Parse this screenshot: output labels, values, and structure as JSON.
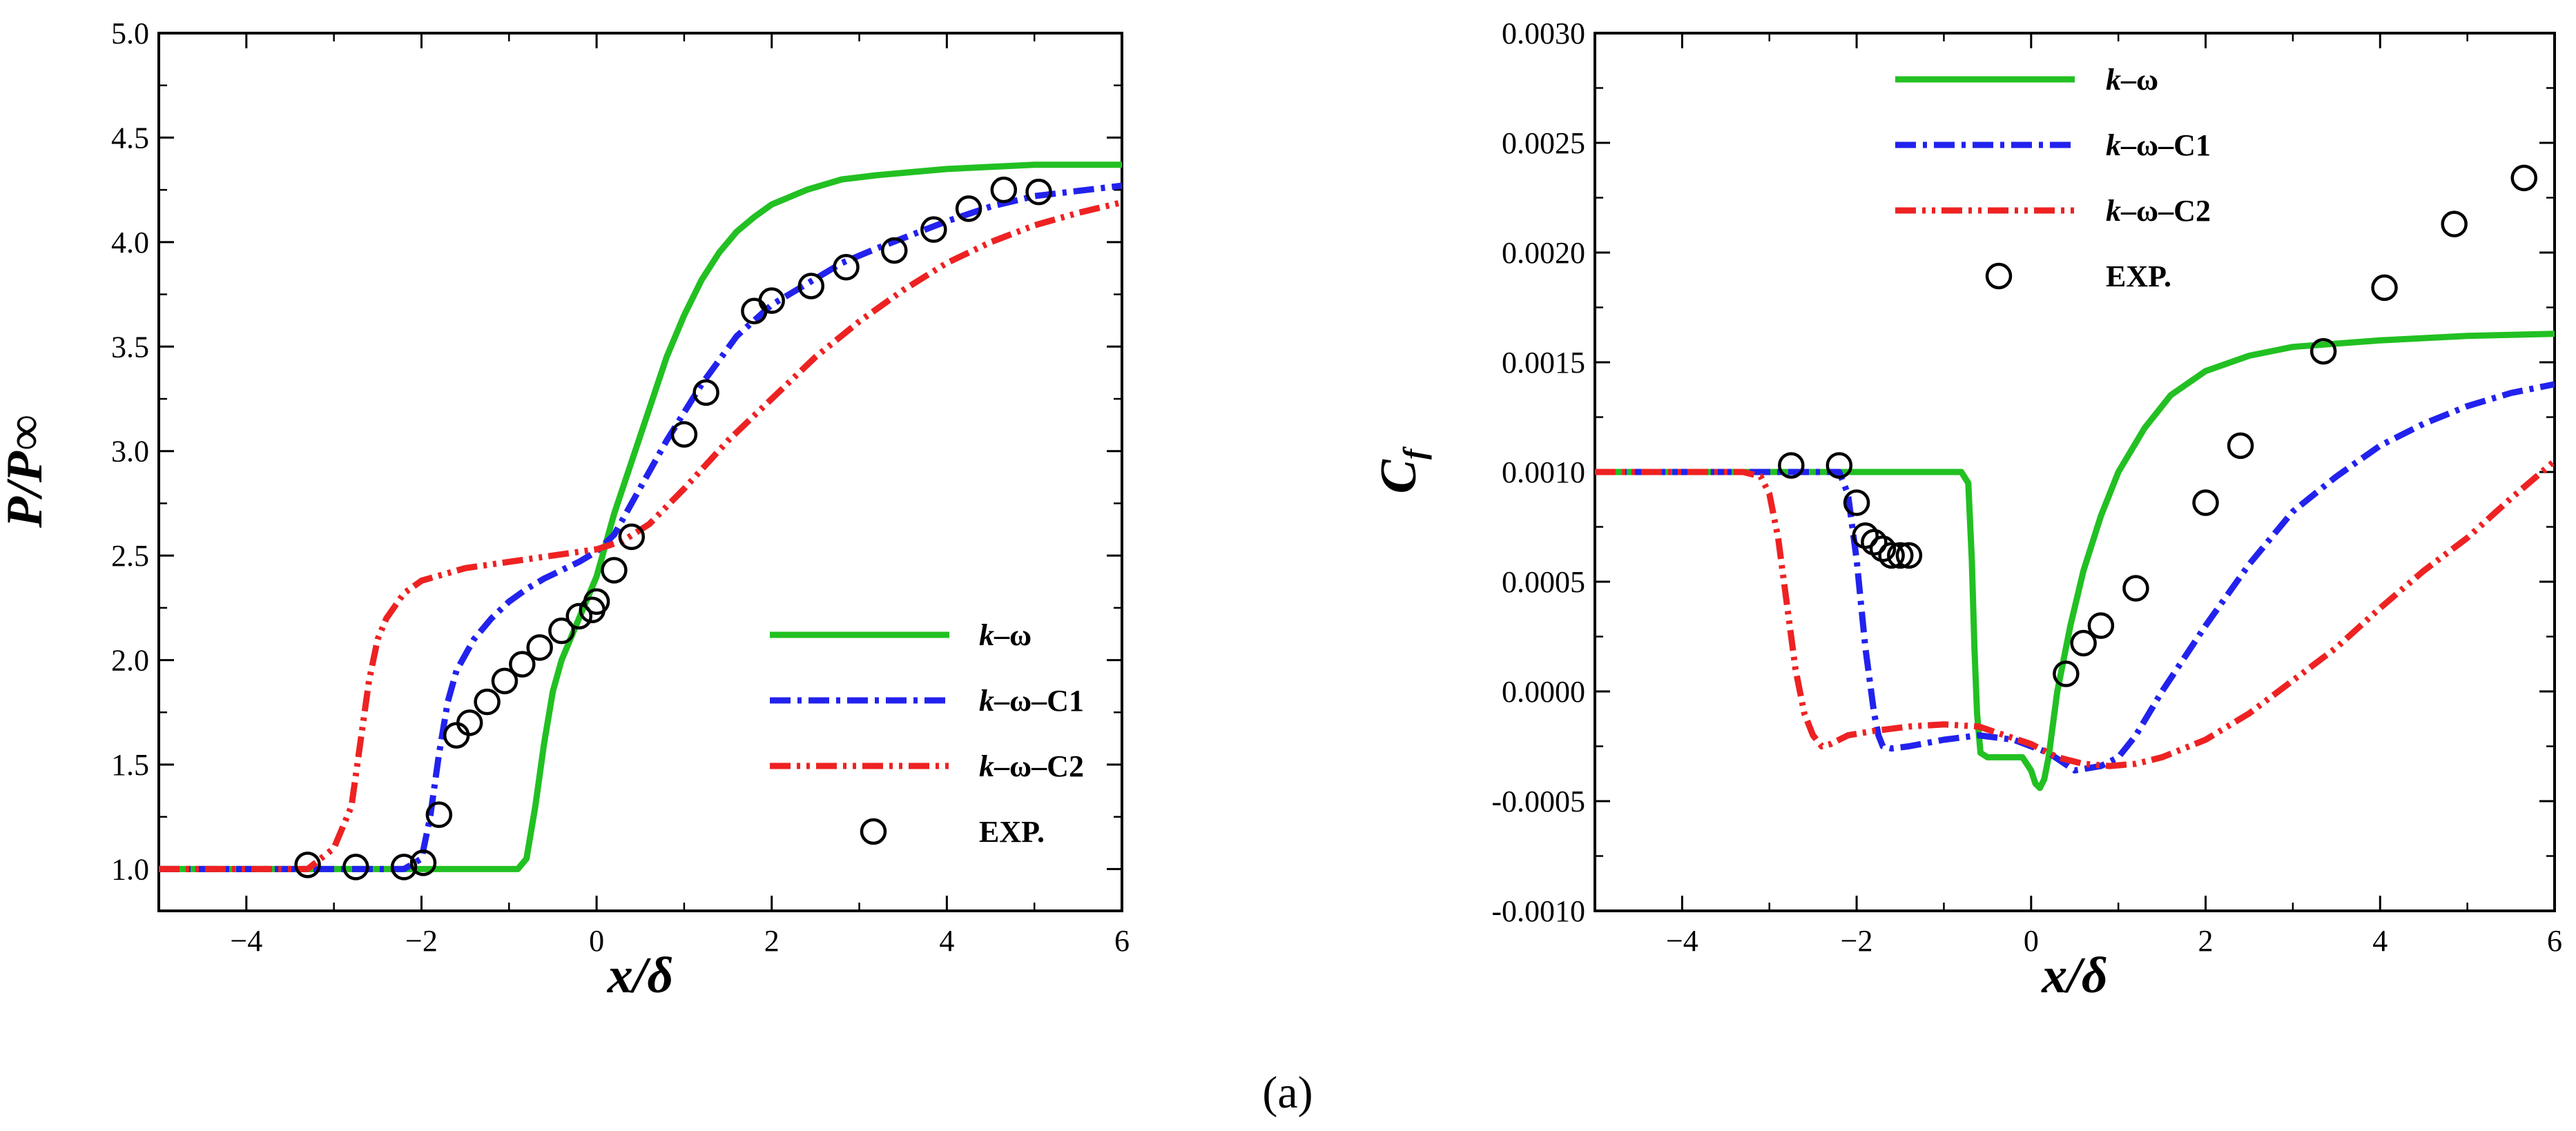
{
  "caption": "(a)",
  "chart_data": [
    {
      "type": "line",
      "xlabel": "x/δ",
      "ylabel": "P/P∞",
      "xlim": [
        -5,
        6
      ],
      "ylim": [
        0.8,
        5.0
      ],
      "xticks": [
        -4,
        -2,
        0,
        2,
        4,
        6
      ],
      "xtick_labels": [
        "−4",
        "−2",
        "0",
        "2",
        "4",
        "6"
      ],
      "yticks": [
        1.0,
        1.5,
        2.0,
        2.5,
        3.0,
        3.5,
        4.0,
        4.5,
        5.0
      ],
      "ytick_labels": [
        "1.0",
        "1.5",
        "2.0",
        "2.5",
        "3.0",
        "3.5",
        "4.0",
        "4.5",
        "5.0"
      ],
      "legend_position": "center-right",
      "series": [
        {
          "name": "k–ω",
          "style": "solid",
          "color": "#22c022",
          "x": [
            -5,
            -0.9,
            -0.8,
            -0.7,
            -0.6,
            -0.5,
            -0.4,
            -0.3,
            -0.2,
            -0.1,
            0.0,
            0.1,
            0.2,
            0.4,
            0.6,
            0.8,
            1.0,
            1.2,
            1.4,
            1.6,
            1.8,
            2.0,
            2.4,
            2.8,
            3.2,
            4.0,
            5.0,
            6.0
          ],
          "y": [
            1.0,
            1.0,
            1.05,
            1.3,
            1.6,
            1.85,
            2.0,
            2.1,
            2.2,
            2.3,
            2.4,
            2.55,
            2.7,
            2.95,
            3.2,
            3.45,
            3.65,
            3.82,
            3.95,
            4.05,
            4.12,
            4.18,
            4.25,
            4.3,
            4.32,
            4.35,
            4.37,
            4.37
          ]
        },
        {
          "name": "k–ω–C1",
          "style": "dashdot",
          "color": "#2222ee",
          "x": [
            -5,
            -2.2,
            -2.0,
            -1.9,
            -1.8,
            -1.7,
            -1.6,
            -1.4,
            -1.2,
            -1.0,
            -0.8,
            -0.6,
            -0.4,
            -0.2,
            0.0,
            0.2,
            0.4,
            0.8,
            1.2,
            1.6,
            2.0,
            2.4,
            2.8,
            3.2,
            4.0,
            4.5,
            5.0,
            6.0
          ],
          "y": [
            1.0,
            1.0,
            1.05,
            1.25,
            1.55,
            1.8,
            1.95,
            2.1,
            2.2,
            2.28,
            2.34,
            2.39,
            2.43,
            2.47,
            2.52,
            2.6,
            2.75,
            3.05,
            3.32,
            3.55,
            3.7,
            3.8,
            3.9,
            3.97,
            4.1,
            4.17,
            4.22,
            4.27
          ]
        },
        {
          "name": "k–ω–C2",
          "style": "dashdotdot",
          "color": "#ee2222",
          "x": [
            -5,
            -3.3,
            -3.0,
            -2.8,
            -2.7,
            -2.6,
            -2.5,
            -2.4,
            -2.2,
            -2.0,
            -1.5,
            -1.0,
            -0.5,
            0.0,
            0.3,
            0.6,
            1.0,
            1.5,
            2.0,
            2.5,
            3.0,
            3.5,
            4.0,
            4.5,
            5.0,
            5.5,
            6.0
          ],
          "y": [
            1.0,
            1.0,
            1.1,
            1.3,
            1.6,
            1.9,
            2.1,
            2.2,
            2.32,
            2.38,
            2.44,
            2.47,
            2.5,
            2.53,
            2.57,
            2.65,
            2.82,
            3.05,
            3.25,
            3.45,
            3.62,
            3.77,
            3.9,
            4.0,
            4.08,
            4.14,
            4.19
          ]
        },
        {
          "name": "EXP.",
          "style": "markers",
          "marker": "open-circle",
          "x": [
            -3.3,
            -2.75,
            -2.2,
            -1.98,
            -1.8,
            -1.6,
            -1.45,
            -1.25,
            -1.05,
            -0.85,
            -0.65,
            -0.4,
            -0.2,
            -0.05,
            0.0,
            0.2,
            0.4,
            1.0,
            1.25,
            1.8,
            2.0,
            2.45,
            2.85,
            3.4,
            3.85,
            4.25,
            4.65,
            5.05
          ],
          "y": [
            1.02,
            1.01,
            1.01,
            1.03,
            1.26,
            1.64,
            1.7,
            1.8,
            1.9,
            1.98,
            2.06,
            2.14,
            2.21,
            2.24,
            2.28,
            2.43,
            2.59,
            3.08,
            3.28,
            3.67,
            3.72,
            3.79,
            3.88,
            3.96,
            4.06,
            4.16,
            4.25,
            4.24
          ]
        }
      ]
    },
    {
      "type": "line",
      "xlabel": "x/δ",
      "ylabel": "Cf",
      "ylabel_main": "C",
      "ylabel_sub": "f",
      "xlim": [
        -5,
        6
      ],
      "ylim": [
        -0.001,
        0.003
      ],
      "xticks": [
        -4,
        -2,
        0,
        2,
        4,
        6
      ],
      "xtick_labels": [
        "−4",
        "−2",
        "0",
        "2",
        "4",
        "6"
      ],
      "yticks": [
        -0.001,
        -0.0005,
        0.0,
        0.0005,
        0.001,
        0.0015,
        0.002,
        0.0025,
        0.003
      ],
      "ytick_labels": [
        "-0.0010",
        "-0.0005",
        "0.0000",
        "0.0005",
        "0.0010",
        "0.0015",
        "0.0020",
        "0.0025",
        "0.0030"
      ],
      "legend_position": "top-center",
      "series": [
        {
          "name": "k–ω",
          "style": "solid",
          "color": "#22c022",
          "x": [
            -5,
            -0.8,
            -0.72,
            -0.68,
            -0.65,
            -0.62,
            -0.58,
            -0.5,
            -0.3,
            -0.1,
            0.0,
            0.05,
            0.1,
            0.15,
            0.2,
            0.3,
            0.45,
            0.6,
            0.8,
            1.0,
            1.3,
            1.6,
            2.0,
            2.5,
            3.0,
            4.0,
            5.0,
            6.0
          ],
          "y": [
            0.001,
            0.001,
            0.00095,
            0.0006,
            0.0002,
            -0.0001,
            -0.00028,
            -0.0003,
            -0.0003,
            -0.0003,
            -0.00036,
            -0.00042,
            -0.00044,
            -0.0004,
            -0.0003,
            0.0,
            0.0003,
            0.00055,
            0.0008,
            0.001,
            0.0012,
            0.00135,
            0.00146,
            0.00153,
            0.00157,
            0.0016,
            0.00162,
            0.00163
          ]
        },
        {
          "name": "k–ω–C1",
          "style": "dashdot",
          "color": "#2222ee",
          "x": [
            -5,
            -2.2,
            -2.1,
            -2.0,
            -1.9,
            -1.8,
            -1.75,
            -1.7,
            -1.6,
            -1.4,
            -1.0,
            -0.6,
            -0.2,
            0.2,
            0.5,
            0.8,
            1.0,
            1.2,
            1.5,
            2.0,
            2.5,
            3.0,
            3.5,
            4.0,
            4.5,
            5.0,
            5.5,
            6.0
          ],
          "y": [
            0.001,
            0.001,
            0.0009,
            0.0006,
            0.0002,
            -0.0001,
            -0.0002,
            -0.00025,
            -0.00026,
            -0.00025,
            -0.00022,
            -0.0002,
            -0.00022,
            -0.00028,
            -0.00036,
            -0.00034,
            -0.0003,
            -0.0002,
            0.0,
            0.0003,
            0.00058,
            0.00082,
            0.00098,
            0.00112,
            0.00122,
            0.0013,
            0.00136,
            0.0014
          ]
        },
        {
          "name": "k–ω–C2",
          "style": "dashdotdot",
          "color": "#ee2222",
          "x": [
            -5,
            -3.3,
            -3.1,
            -3.0,
            -2.9,
            -2.8,
            -2.7,
            -2.6,
            -2.5,
            -2.4,
            -2.3,
            -2.1,
            -1.8,
            -1.4,
            -1.0,
            -0.6,
            -0.3,
            0.0,
            0.3,
            0.6,
            0.9,
            1.2,
            1.5,
            2.0,
            2.5,
            3.0,
            3.5,
            4.0,
            4.5,
            5.0,
            5.5,
            6.0
          ],
          "y": [
            0.001,
            0.001,
            0.00098,
            0.0009,
            0.0007,
            0.0004,
            0.0001,
            -0.0001,
            -0.0002,
            -0.00025,
            -0.00024,
            -0.0002,
            -0.00018,
            -0.00016,
            -0.00015,
            -0.00016,
            -0.0002,
            -0.00024,
            -0.0003,
            -0.00033,
            -0.00034,
            -0.00033,
            -0.0003,
            -0.00022,
            -0.0001,
            5e-05,
            0.0002,
            0.00038,
            0.00055,
            0.0007,
            0.00088,
            0.00105
          ]
        },
        {
          "name": "EXP.",
          "style": "markers",
          "marker": "open-circle",
          "x": [
            -2.75,
            -2.2,
            -2.0,
            -1.9,
            -1.8,
            -1.7,
            -1.6,
            -1.5,
            -1.4,
            0.4,
            0.6,
            0.8,
            1.2,
            2.0,
            2.4,
            3.35,
            4.05,
            4.85,
            5.65
          ],
          "y": [
            0.00103,
            0.00103,
            0.00086,
            0.00071,
            0.00068,
            0.00065,
            0.00062,
            0.00062,
            0.00062,
            8e-05,
            0.00022,
            0.0003,
            0.00047,
            0.00086,
            0.00112,
            0.00155,
            0.00184,
            0.00213,
            0.00234
          ]
        }
      ]
    }
  ]
}
